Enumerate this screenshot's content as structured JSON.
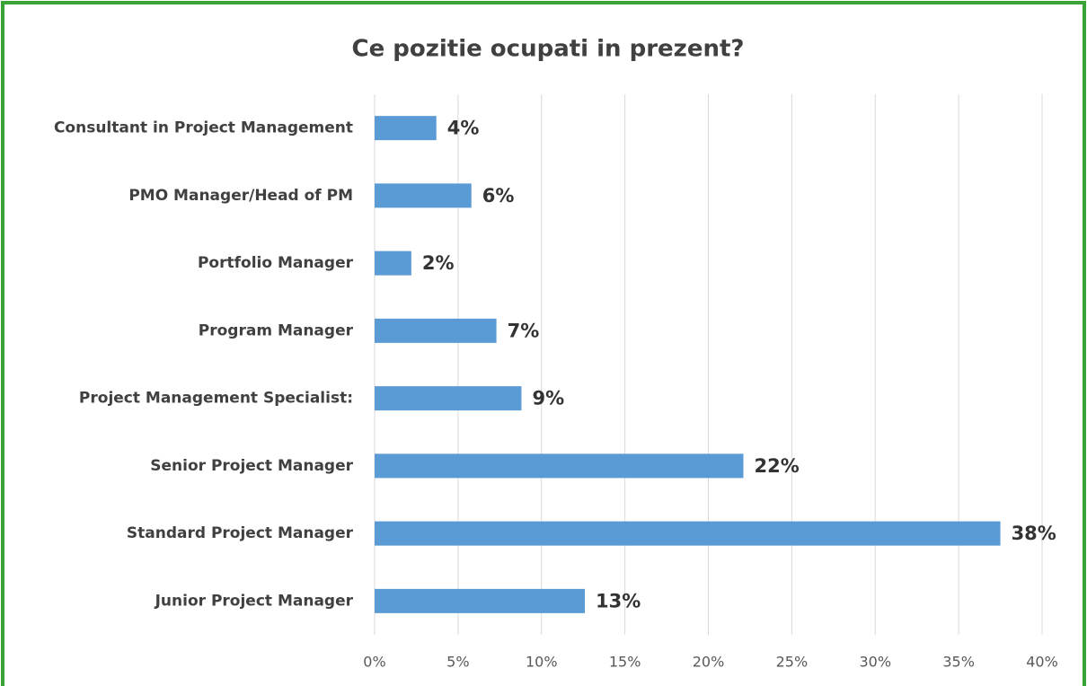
{
  "chart_data": {
    "type": "bar",
    "orientation": "horizontal",
    "title": "Ce pozitie ocupati in prezent?",
    "categories": [
      "Consultant in Project Management",
      "PMO Manager/Head of PM",
      "Portfolio Manager",
      "Program Manager",
      "Project Management Specialist:",
      "Senior Project Manager",
      "Standard Project Manager",
      "Junior Project Manager"
    ],
    "values": [
      3.7,
      5.8,
      2.2,
      7.3,
      8.8,
      22.1,
      37.5,
      12.6
    ],
    "value_labels": [
      "4%",
      "6%",
      "2%",
      "7%",
      "9%",
      "22%",
      "38%",
      "13%"
    ],
    "color": "#5b9bd5",
    "xlim": [
      0,
      40
    ],
    "xticks": [
      {
        "value": 0,
        "label": "0%"
      },
      {
        "value": 5,
        "label": "5%"
      },
      {
        "value": 10,
        "label": "10%"
      },
      {
        "value": 15,
        "label": "15%"
      },
      {
        "value": 20,
        "label": "20%"
      },
      {
        "value": 25,
        "label": "25%"
      },
      {
        "value": 30,
        "label": "30%"
      },
      {
        "value": 35,
        "label": "35%"
      },
      {
        "value": 40,
        "label": "40%"
      }
    ],
    "grid": true
  }
}
